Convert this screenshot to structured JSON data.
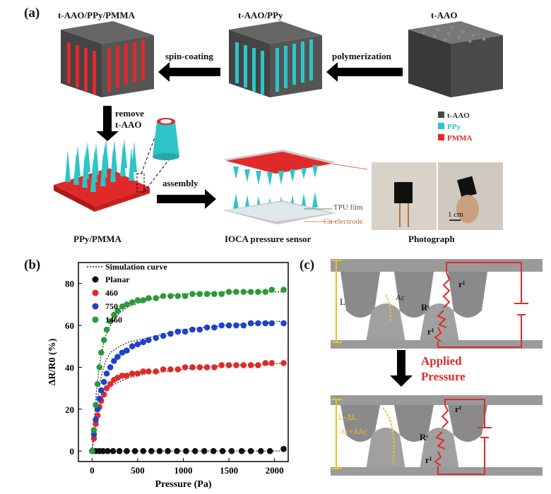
{
  "panel_a": {
    "tag": "(a)",
    "titles": {
      "final": "t-AAO/PPy/PMMA",
      "mid": "t-AAO/PPy",
      "start": "t-AAO"
    },
    "steps": {
      "spin": "spin-coating",
      "poly": "polymerization",
      "remove1": "remove",
      "remove2": "t-AAO",
      "assembly": "assembly"
    },
    "legend": [
      {
        "label": "t-AAO",
        "color": "#4a4a4a",
        "text_color": "#333333"
      },
      {
        "label": "PPy",
        "color": "#2ec4c8",
        "text_color": "#2ec4c8"
      },
      {
        "label": "PMMA",
        "color": "#e02a2a",
        "text_color": "#e02a2a"
      }
    ],
    "captions": {
      "ppy_pmma": "PPy/PMMA",
      "sensor": "IOCA pressure sensor",
      "photo": "Photograph"
    },
    "sensor_labels": {
      "tpu": "TPU film",
      "cu": "Cu electrode"
    },
    "scale_bar": "1 cm",
    "colors": {
      "aao": "#555555",
      "ppy": "#2ec4c8",
      "pmma": "#e02a2a"
    }
  },
  "panel_b": {
    "tag": "(b)"
  },
  "panel_c": {
    "tag": "(c)",
    "top": {
      "L": "L",
      "Ac": "Ac",
      "r1": "r¹",
      "Rc": "Rᶜ",
      "r2": "r¹"
    },
    "arrow_text_1": "Applied",
    "arrow_text_2": "Pressure",
    "bottom": {
      "L": "L-ΔL",
      "Ac": "Ac+ΔAc",
      "r1": "r¹",
      "Rc": "Rᶜ",
      "r2": "r¹"
    },
    "colors": {
      "red": "#e02a2a",
      "yellow": "#f0c020",
      "gray": "#9a9a9a"
    }
  },
  "chart_data": {
    "type": "scatter",
    "xlabel": "Pressure (Pa)",
    "ylabel": "ΔR/R0 (%)",
    "xlim": [
      -150,
      2150
    ],
    "ylim": [
      -5,
      90
    ],
    "xticks": [
      0,
      500,
      1000,
      1500,
      2000
    ],
    "yticks": [
      0,
      20,
      40,
      60,
      80
    ],
    "legend_position": "top-left",
    "simulation_label": "Simulation curve",
    "series": [
      {
        "name": "Planar",
        "color": "#111111",
        "x": [
          0,
          40,
          80,
          120,
          170,
          230,
          300,
          380,
          470,
          560,
          650,
          740,
          830,
          930,
          1030,
          1130,
          1230,
          1330,
          1430,
          1530,
          1640,
          1740,
          1850,
          1950,
          2100
        ],
        "y": [
          0,
          0,
          0,
          0,
          0,
          0,
          0,
          0,
          0,
          0,
          0,
          0,
          0,
          0,
          0,
          0,
          0,
          0,
          0,
          0,
          0,
          0,
          0,
          0,
          1
        ]
      },
      {
        "name": "460",
        "color": "#e02a2a",
        "x": [
          0,
          20,
          40,
          60,
          80,
          100,
          130,
          160,
          200,
          240,
          280,
          330,
          380,
          440,
          500,
          560,
          620,
          700,
          780,
          860,
          940,
          1020,
          1100,
          1180,
          1260,
          1340,
          1420,
          1500,
          1580,
          1660,
          1740,
          1820,
          1900,
          1970,
          2100
        ],
        "y": [
          0,
          6,
          13,
          17,
          21,
          24,
          27,
          30,
          32,
          34,
          35,
          36,
          36,
          37,
          37,
          38,
          38,
          38,
          39,
          39,
          39,
          40,
          40,
          40,
          40,
          40,
          41,
          41,
          41,
          41,
          41,
          41,
          42,
          42,
          42
        ]
      },
      {
        "name": "750",
        "color": "#2040d0",
        "x": [
          0,
          20,
          40,
          60,
          80,
          100,
          130,
          160,
          200,
          240,
          280,
          330,
          380,
          440,
          500,
          560,
          620,
          700,
          780,
          860,
          940,
          1020,
          1100,
          1180,
          1260,
          1340,
          1420,
          1500,
          1580,
          1660,
          1740,
          1820,
          1900,
          1970,
          2100
        ],
        "y": [
          0,
          8,
          15,
          20,
          25,
          29,
          33,
          37,
          40,
          43,
          45,
          47,
          48,
          50,
          51,
          52,
          53,
          54,
          55,
          56,
          57,
          57,
          58,
          58,
          59,
          59,
          60,
          60,
          60,
          60,
          61,
          61,
          61,
          61,
          61
        ]
      },
      {
        "name": "1460",
        "color": "#2a9a3a",
        "x": [
          0,
          20,
          40,
          60,
          80,
          100,
          130,
          160,
          200,
          240,
          280,
          330,
          380,
          440,
          500,
          560,
          620,
          700,
          780,
          860,
          940,
          1020,
          1100,
          1180,
          1260,
          1340,
          1420,
          1500,
          1580,
          1660,
          1740,
          1820,
          1900,
          1970,
          2100
        ],
        "y": [
          0,
          10,
          22,
          32,
          40,
          47,
          53,
          58,
          62,
          65,
          67,
          69,
          70,
          71,
          72,
          72,
          73,
          73,
          74,
          74,
          74,
          74,
          75,
          75,
          75,
          75,
          75,
          76,
          76,
          76,
          76,
          76,
          76,
          77,
          77
        ]
      }
    ],
    "simulation_curves": [
      {
        "x": [
          0,
          50,
          100,
          150,
          200,
          300,
          400,
          600,
          800,
          1000,
          1200,
          1500,
          1800,
          2100
        ],
        "y": [
          0,
          0,
          0,
          0,
          0,
          0,
          0,
          0,
          0,
          0,
          0,
          0,
          0,
          0
        ]
      },
      {
        "x": [
          0,
          50,
          100,
          150,
          200,
          300,
          400,
          600,
          800,
          1000,
          1200,
          1500,
          1800,
          2100
        ],
        "y": [
          0,
          17,
          24,
          28,
          31,
          33,
          35,
          37,
          38,
          39,
          40,
          41,
          41,
          42
        ]
      },
      {
        "x": [
          0,
          50,
          100,
          150,
          200,
          300,
          400,
          600,
          800,
          1000,
          1200,
          1500,
          1800,
          2100
        ],
        "y": [
          0,
          22,
          36,
          43,
          47,
          50,
          52,
          54,
          56,
          58,
          59,
          60,
          61,
          62
        ]
      },
      {
        "x": [
          0,
          50,
          100,
          150,
          200,
          300,
          400,
          600,
          800,
          1000,
          1200,
          1500,
          1800,
          2100
        ],
        "y": [
          0,
          30,
          47,
          55,
          60,
          66,
          69,
          72,
          74,
          75,
          75,
          76,
          76,
          76
        ]
      }
    ]
  }
}
